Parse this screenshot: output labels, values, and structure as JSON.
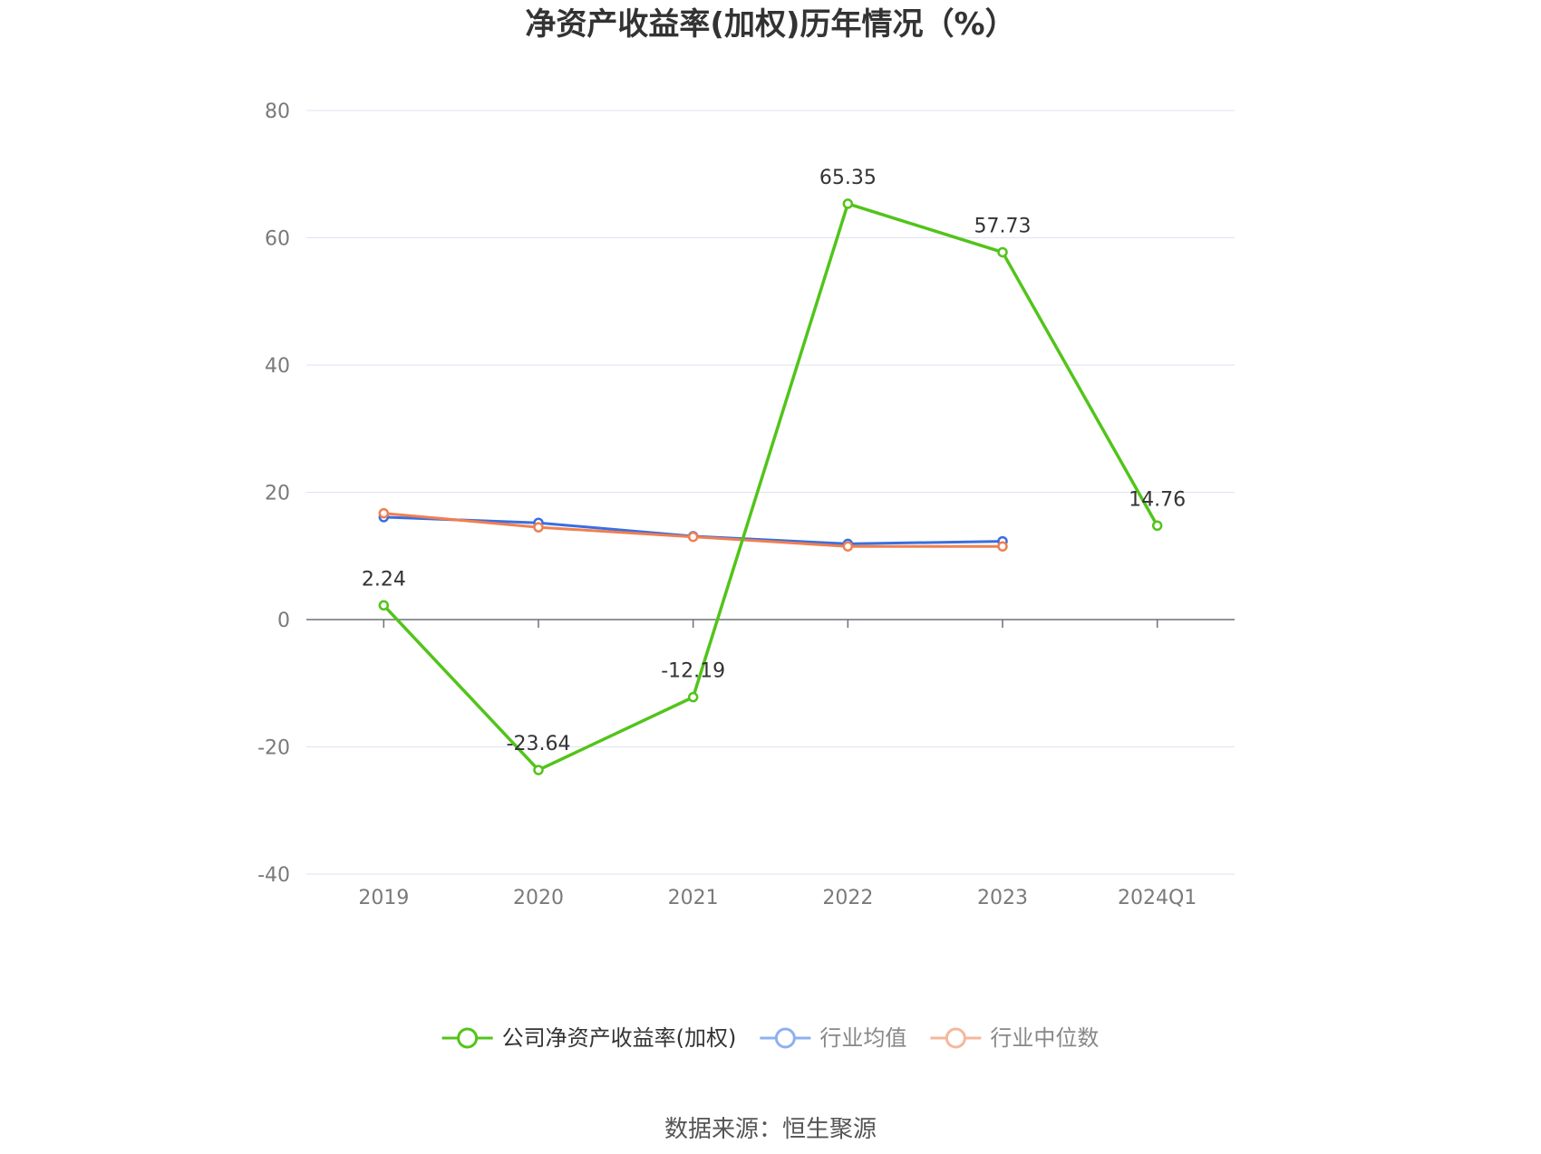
{
  "chart_data": {
    "type": "line",
    "title": "净资产收益率(加权)历年情况（%）",
    "categories": [
      "2019",
      "2020",
      "2021",
      "2022",
      "2023",
      "2024Q1"
    ],
    "ylim": [
      -40,
      80
    ],
    "yticks": [
      80,
      60,
      40,
      20,
      0,
      -20,
      -40
    ],
    "grid": true,
    "legend_position": "bottom-center",
    "series": [
      {
        "name": "公司净资产收益率(加权)",
        "color": "#52c41a",
        "values": [
          2.24,
          -23.64,
          -12.19,
          65.35,
          57.73,
          14.76
        ],
        "labels": [
          "2.24",
          "-23.64",
          "-12.19",
          "65.35",
          "57.73",
          "14.76"
        ]
      },
      {
        "name": "行业均值",
        "color": "#3a6ee0",
        "legend_color": "#8fb0ef",
        "values": [
          16.1,
          15.2,
          13.1,
          11.9,
          12.3,
          null
        ]
      },
      {
        "name": "行业中位数",
        "color": "#f07f50",
        "legend_color": "#f5b79c",
        "values": [
          16.7,
          14.5,
          13.0,
          11.5,
          11.5,
          null
        ]
      }
    ]
  },
  "footer": {
    "source": "数据来源：恒生聚源"
  }
}
